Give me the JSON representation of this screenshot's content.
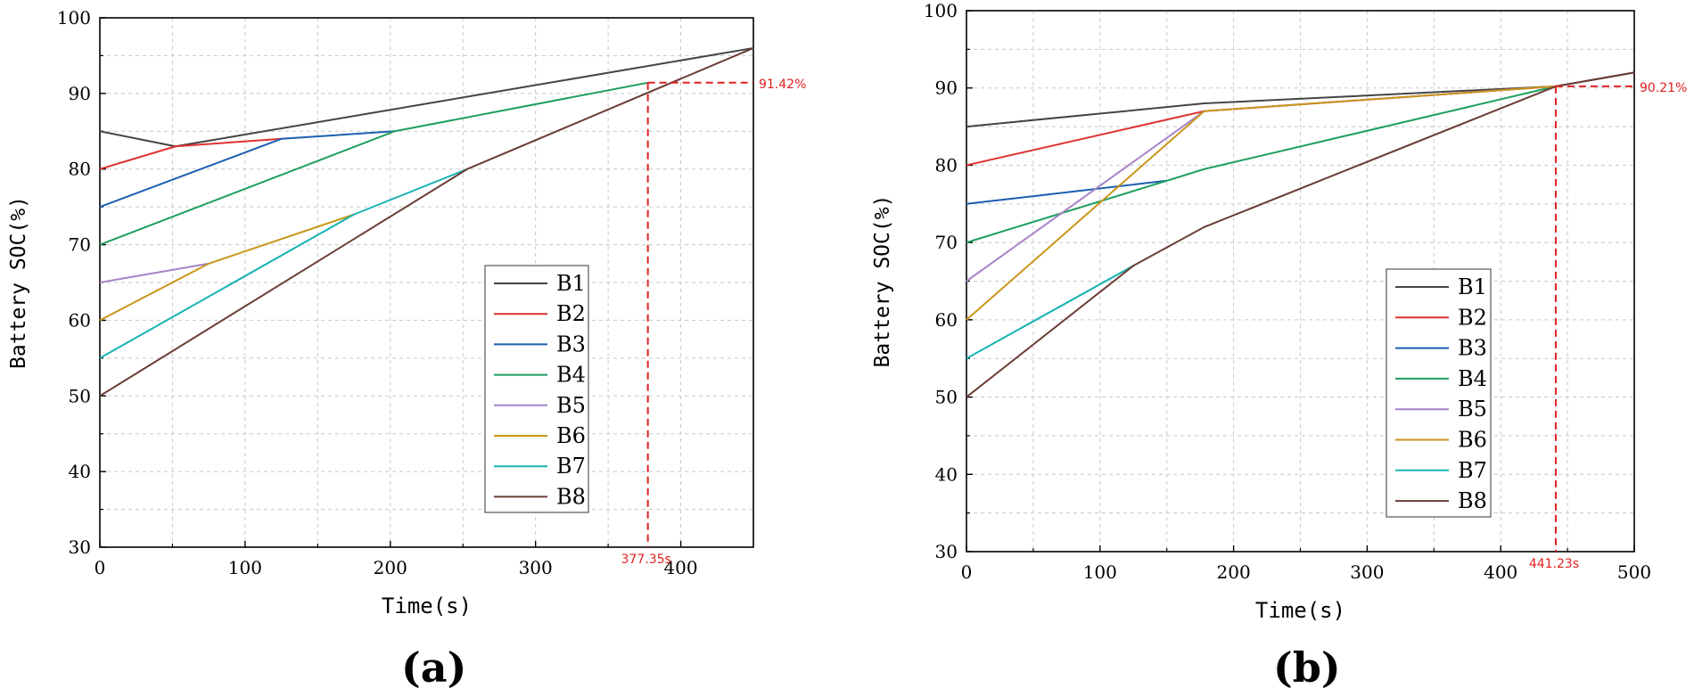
{
  "chart_data": [
    {
      "type": "line",
      "panel_label": "(a)",
      "xlabel": "Time(s)",
      "ylabel": "Battery SOC(%)",
      "xlim": [
        0,
        450
      ],
      "ylim": [
        30,
        100
      ],
      "xticks": [
        0,
        100,
        200,
        300,
        400
      ],
      "yticks": [
        30,
        40,
        50,
        60,
        70,
        80,
        90,
        100
      ],
      "grid": true,
      "legend_position": "center-right",
      "series": [
        {
          "name": "B1",
          "color": "#444444",
          "x": [
            0,
            52,
            450
          ],
          "y": [
            85,
            83,
            96
          ]
        },
        {
          "name": "B2",
          "color": "#e03131",
          "x": [
            0,
            52,
            125
          ],
          "y": [
            80,
            83,
            84
          ]
        },
        {
          "name": "B3",
          "color": "#1c5fb0",
          "x": [
            0,
            125,
            203
          ],
          "y": [
            75,
            84,
            85
          ]
        },
        {
          "name": "B4",
          "color": "#1e9f5f",
          "x": [
            0,
            203,
            377.35
          ],
          "y": [
            70,
            85,
            91.42
          ]
        },
        {
          "name": "B5",
          "color": "#a683c8",
          "x": [
            0,
            75
          ],
          "y": [
            65,
            67.5
          ]
        },
        {
          "name": "B6",
          "color": "#c99619",
          "x": [
            0,
            75,
            175
          ],
          "y": [
            60,
            67.5,
            74
          ]
        },
        {
          "name": "B7",
          "color": "#17b3b3",
          "x": [
            0,
            175,
            253
          ],
          "y": [
            55,
            74,
            80
          ]
        },
        {
          "name": "B8",
          "color": "#6b3d36",
          "x": [
            0,
            253,
            450
          ],
          "y": [
            50,
            80,
            96
          ]
        }
      ],
      "annotations": {
        "time_label": "377.35s",
        "time_value": 377.35,
        "soc_label": "91.42%",
        "soc_value": 91.42,
        "color": "#e02020"
      }
    },
    {
      "type": "line",
      "panel_label": "(b)",
      "xlabel": "Time(s)",
      "ylabel": "Battery SOC(%)",
      "xlim": [
        0,
        500
      ],
      "ylim": [
        30,
        100
      ],
      "xticks": [
        0,
        100,
        200,
        300,
        400,
        500
      ],
      "yticks": [
        30,
        40,
        50,
        60,
        70,
        80,
        90,
        100
      ],
      "grid": true,
      "legend_position": "center-right",
      "series": [
        {
          "name": "B1",
          "color": "#444444",
          "x": [
            0,
            178,
            441.23,
            500
          ],
          "y": [
            85,
            88,
            90.21,
            92
          ]
        },
        {
          "name": "B2",
          "color": "#e03131",
          "x": [
            0,
            178,
            441.23
          ],
          "y": [
            80,
            87,
            90.21
          ]
        },
        {
          "name": "B3",
          "color": "#1c5fb0",
          "x": [
            0,
            150
          ],
          "y": [
            75,
            78
          ]
        },
        {
          "name": "B4",
          "color": "#1e9f5f",
          "x": [
            0,
            150,
            178,
            441.23
          ],
          "y": [
            70,
            78,
            79.5,
            90.21
          ]
        },
        {
          "name": "B5",
          "color": "#a683c8",
          "x": [
            0,
            178,
            441.23
          ],
          "y": [
            65,
            87,
            90.21
          ]
        },
        {
          "name": "B6",
          "color": "#c99619",
          "x": [
            0,
            178,
            441.23
          ],
          "y": [
            60,
            87,
            90.21
          ]
        },
        {
          "name": "B7",
          "color": "#17b3b3",
          "x": [
            0,
            125
          ],
          "y": [
            55,
            67
          ]
        },
        {
          "name": "B8",
          "color": "#6b3d36",
          "x": [
            0,
            125,
            178,
            441.23,
            500
          ],
          "y": [
            50,
            67,
            72,
            90.21,
            92
          ]
        }
      ],
      "annotations": {
        "time_label": "441.23s",
        "time_value": 441.23,
        "soc_label": "90.21%",
        "soc_value": 90.21,
        "color": "#e02020"
      }
    }
  ]
}
